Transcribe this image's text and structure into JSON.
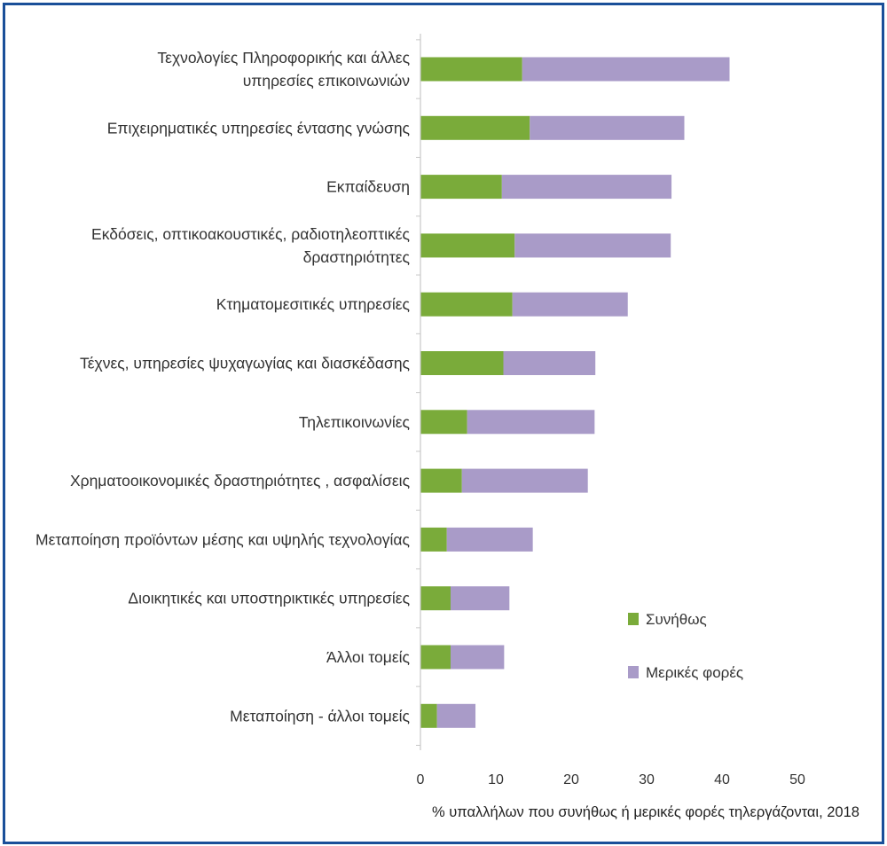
{
  "chart_data": {
    "type": "bar",
    "orientation": "horizontal",
    "stacked": true,
    "categories": [
      [
        "Τεχνολογίες Πληροφορικής και άλλες",
        "υπηρεσίες επικοινωνιών"
      ],
      [
        "Επιχειρηματικές υπηρεσίες έντασης γνώσης"
      ],
      [
        "Εκπαίδευση"
      ],
      [
        "Εκδόσεις, οπτικοακουστικές, ραδιοτηλεοπτικές",
        "δραστηριότητες"
      ],
      [
        "Κτηματομεσιτικές υπηρεσίες"
      ],
      [
        "Τέχνες, υπηρεσίες ψυχαγωγίας και διασκέδασης"
      ],
      [
        "Τηλεπικοινωνίες"
      ],
      [
        "Χρηματοοικονομικές δραστηριότητες , ασφαλίσεις"
      ],
      [
        "Μεταποίηση προϊόντων μέσης και υψηλής τεχνολογίας"
      ],
      [
        "Διοικητικές και υποστηρικτικές υπηρεσίες"
      ],
      [
        "Άλλοι τομείς"
      ],
      [
        "Μεταποίηση  - άλλοι τομείς"
      ]
    ],
    "series": [
      {
        "name": "Συνήθως",
        "color": "#7aab3a",
        "values": [
          13.5,
          14.5,
          10.8,
          12.5,
          12.2,
          11.0,
          6.2,
          5.5,
          3.5,
          4.0,
          4.0,
          2.2
        ]
      },
      {
        "name": "Μερικές φορές",
        "color": "#a99bc8",
        "values": [
          27.5,
          20.5,
          22.5,
          20.7,
          15.3,
          12.2,
          16.9,
          16.7,
          11.4,
          7.8,
          7.1,
          5.1
        ]
      }
    ],
    "xlim": [
      0,
      50
    ],
    "x_ticks": [
      "0",
      "10",
      "20",
      "30",
      "40",
      "50"
    ],
    "xlabel": "% υπαλλήλων που συνήθως ή μερικές φορές τηλεργάζονται, 2018",
    "legend_position": "right",
    "grid": false
  }
}
